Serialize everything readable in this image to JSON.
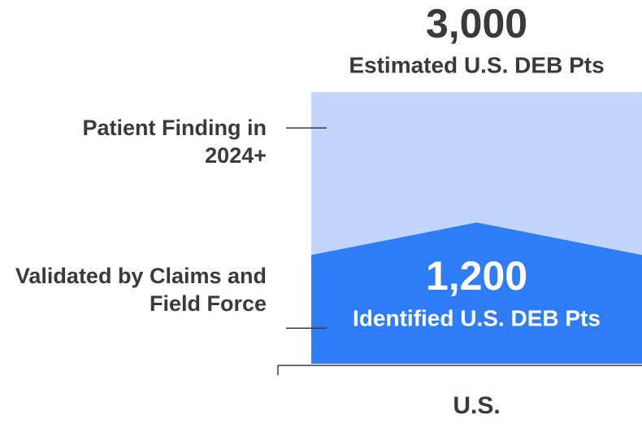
{
  "chart_data": {
    "type": "stacked_bar",
    "categories": [
      "U.S."
    ],
    "series": [
      {
        "name": "Validated by Claims and Field Force",
        "color": "#2e7cf6",
        "values": [
          1200
        ],
        "value_labels": [
          "1,200"
        ],
        "caption": "Identified U.S. DEB Pts"
      },
      {
        "name": "Patient Finding in 2024+",
        "color": "#c2d5fb",
        "values": [
          1800
        ]
      }
    ],
    "total": 3000,
    "total_label": "3,000",
    "total_caption": "Estimated U.S. DEB Pts",
    "ylim": [
      0,
      3000
    ]
  }
}
